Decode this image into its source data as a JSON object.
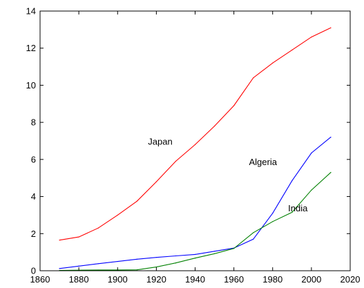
{
  "chart_data": {
    "type": "line",
    "title": "",
    "xlabel": "",
    "ylabel": "",
    "xlim": [
      1860,
      2020
    ],
    "ylim": [
      0,
      14
    ],
    "x_ticks": [
      1860,
      1880,
      1900,
      1920,
      1940,
      1960,
      1980,
      2000,
      2020
    ],
    "y_ticks": [
      0,
      2,
      4,
      6,
      8,
      10,
      12,
      14
    ],
    "grid": false,
    "legend": "none",
    "x": [
      1870,
      1880,
      1890,
      1900,
      1910,
      1920,
      1930,
      1940,
      1950,
      1960,
      1970,
      1980,
      1990,
      2000,
      2010
    ],
    "series": [
      {
        "name": "Japan",
        "color": "#ff0000",
        "label_at": [
          1922,
          6.8
        ],
        "values": [
          1.65,
          1.82,
          2.3,
          3.0,
          3.75,
          4.8,
          5.9,
          6.8,
          7.8,
          8.9,
          10.4,
          11.2,
          11.9,
          12.6,
          13.1
        ]
      },
      {
        "name": "Algeria",
        "color": "#0000ff",
        "label_at": [
          1975,
          5.7
        ],
        "values": [
          0.12,
          0.25,
          0.38,
          0.5,
          0.62,
          0.72,
          0.8,
          0.88,
          1.05,
          1.22,
          1.7,
          3.1,
          4.85,
          6.35,
          7.2
        ]
      },
      {
        "name": "India",
        "color": "#008000",
        "label_at": [
          1993,
          3.2
        ],
        "values": [
          0.02,
          0.03,
          0.04,
          0.04,
          0.05,
          0.2,
          0.42,
          0.68,
          0.92,
          1.2,
          2.05,
          2.65,
          3.15,
          4.35,
          5.3
        ]
      }
    ]
  }
}
